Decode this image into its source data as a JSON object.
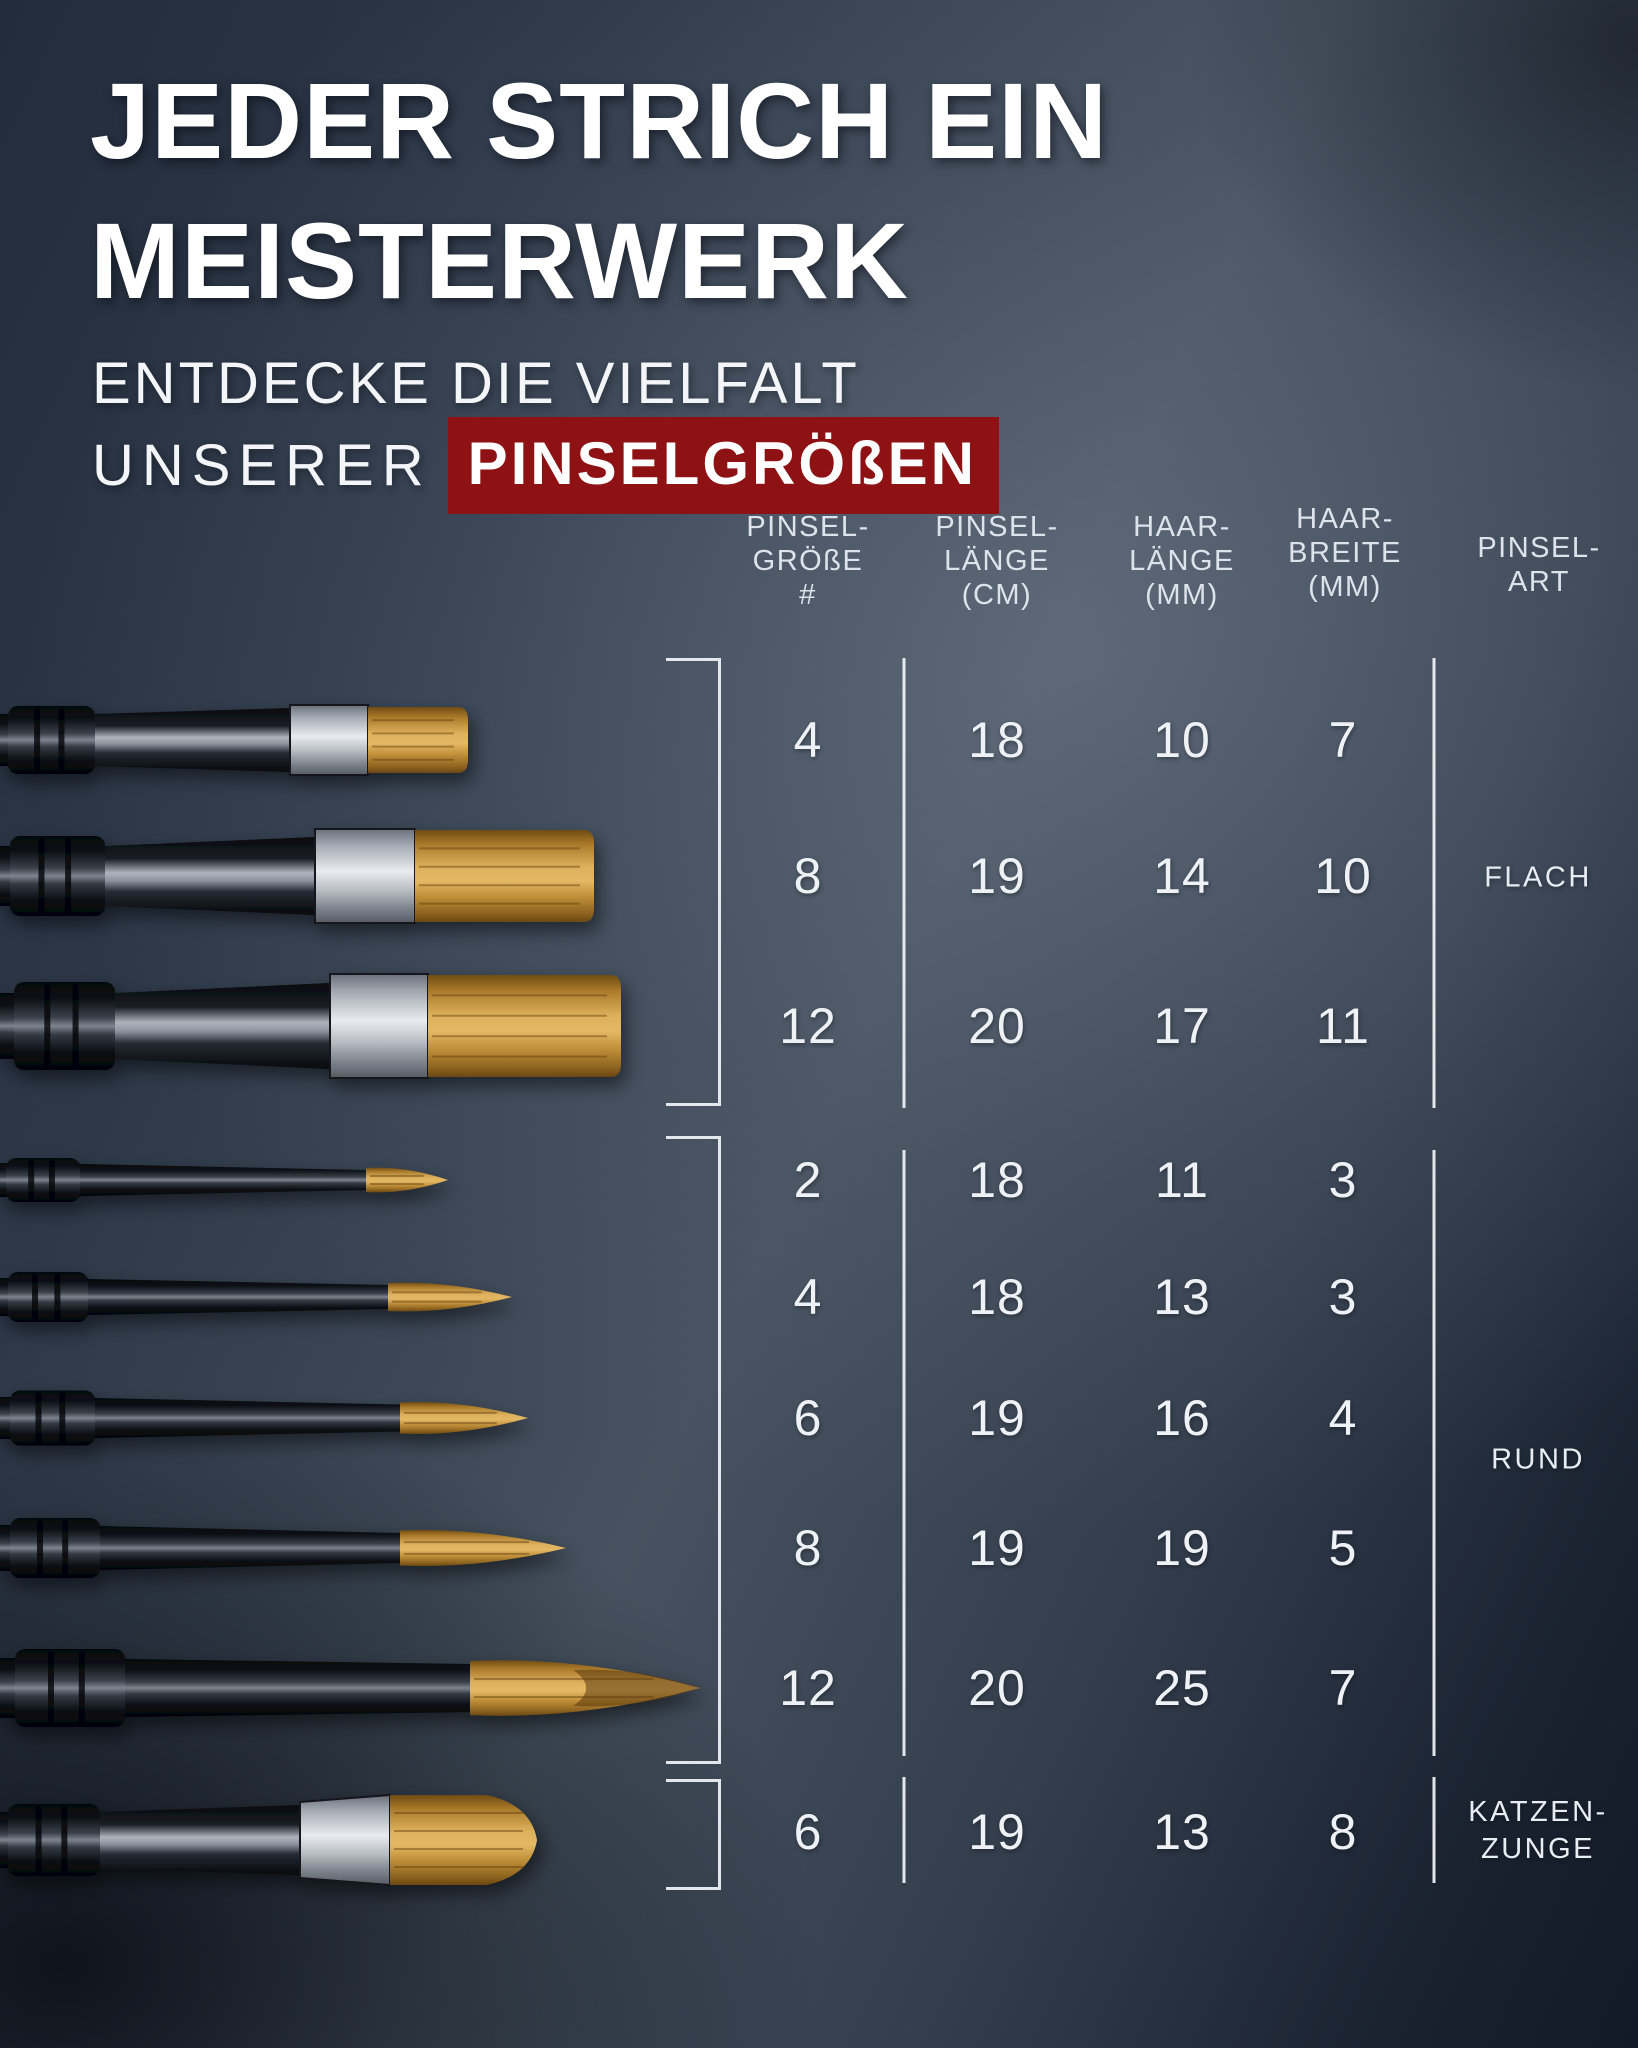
{
  "title": {
    "line1": "JEDER STRICH EIN",
    "line2": "MEISTERWERK"
  },
  "subtitle": {
    "line1": "ENTDECKE DIE VIELFALT",
    "line2_prefix": "UNSERER",
    "line2_highlight": "PINSELGRÖßEN"
  },
  "colors": {
    "accent_red": "#8E1113",
    "line_white": "#F0F3F7",
    "background_light": "#46525F",
    "background_dark": "#121A28",
    "bristle_gold": "#DDB05C",
    "ferrule_silver": "#E9EBEF",
    "handle_black": "#0B0E13"
  },
  "table": {
    "headers": [
      {
        "lines": [
          "PINSEL-",
          "GRÖßE",
          "#"
        ]
      },
      {
        "lines": [
          "PINSEL-",
          "LÄNGE",
          "(CM)"
        ]
      },
      {
        "lines": [
          "HAAR-",
          "LÄNGE",
          "(MM)"
        ]
      },
      {
        "lines": [
          "HAAR-",
          "BREITE",
          "(MM)"
        ]
      },
      {
        "lines": [
          "PINSEL-",
          "ART"
        ]
      }
    ],
    "groups": [
      {
        "id": "flach",
        "label_lines": [
          "FLACH"
        ],
        "rows": [
          [
            "4",
            "18",
            "10",
            "7"
          ],
          [
            "8",
            "19",
            "14",
            "10"
          ],
          [
            "12",
            "20",
            "17",
            "11"
          ]
        ]
      },
      {
        "id": "rund",
        "label_lines": [
          "RUND"
        ],
        "rows": [
          [
            "2",
            "18",
            "11",
            "3"
          ],
          [
            "4",
            "18",
            "13",
            "3"
          ],
          [
            "6",
            "19",
            "16",
            "4"
          ],
          [
            "8",
            "19",
            "19",
            "5"
          ],
          [
            "12",
            "20",
            "25",
            "7"
          ]
        ]
      },
      {
        "id": "katzenzunge",
        "label_lines": [
          "KATZEN-",
          "ZUNGE"
        ],
        "rows": [
          [
            "6",
            "19",
            "13",
            "8"
          ]
        ]
      }
    ]
  },
  "brushes": [
    {
      "type": "FLACH",
      "size": "4"
    },
    {
      "type": "FLACH",
      "size": "8"
    },
    {
      "type": "FLACH",
      "size": "12"
    },
    {
      "type": "RUND",
      "size": "2"
    },
    {
      "type": "RUND",
      "size": "4"
    },
    {
      "type": "RUND",
      "size": "6"
    },
    {
      "type": "RUND",
      "size": "8"
    },
    {
      "type": "RUND",
      "size": "12"
    },
    {
      "type": "KATZENZUNGE",
      "size": "6"
    }
  ]
}
